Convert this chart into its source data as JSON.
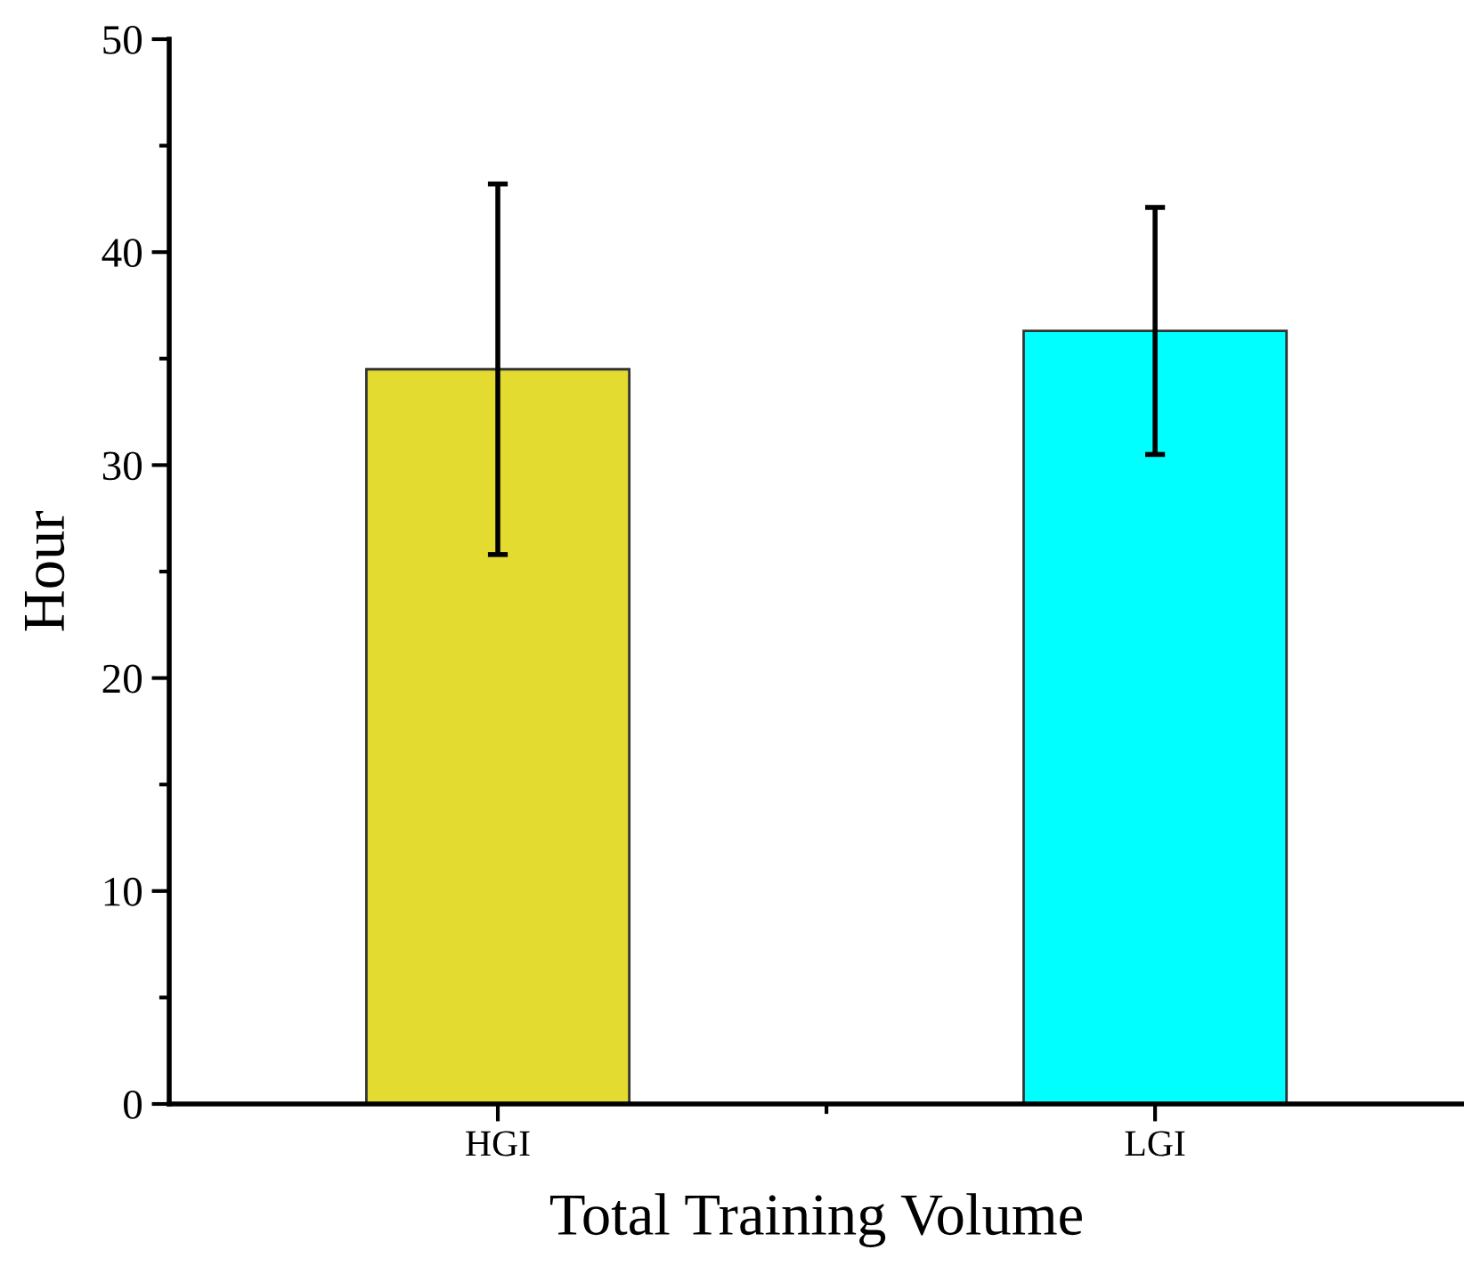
{
  "chart_data": {
    "type": "bar",
    "xlabel": "Total Training Volume",
    "ylabel": "Hour",
    "categories": [
      "HGI",
      "LGI"
    ],
    "values": [
      34.5,
      36.3
    ],
    "errors": [
      8.7,
      5.8
    ],
    "colors": [
      "#e3db2f",
      "#00ffff"
    ],
    "ylim": [
      0,
      50
    ],
    "yticks": [
      0,
      10,
      20,
      30,
      40,
      50
    ],
    "grid": false,
    "legend": false
  }
}
